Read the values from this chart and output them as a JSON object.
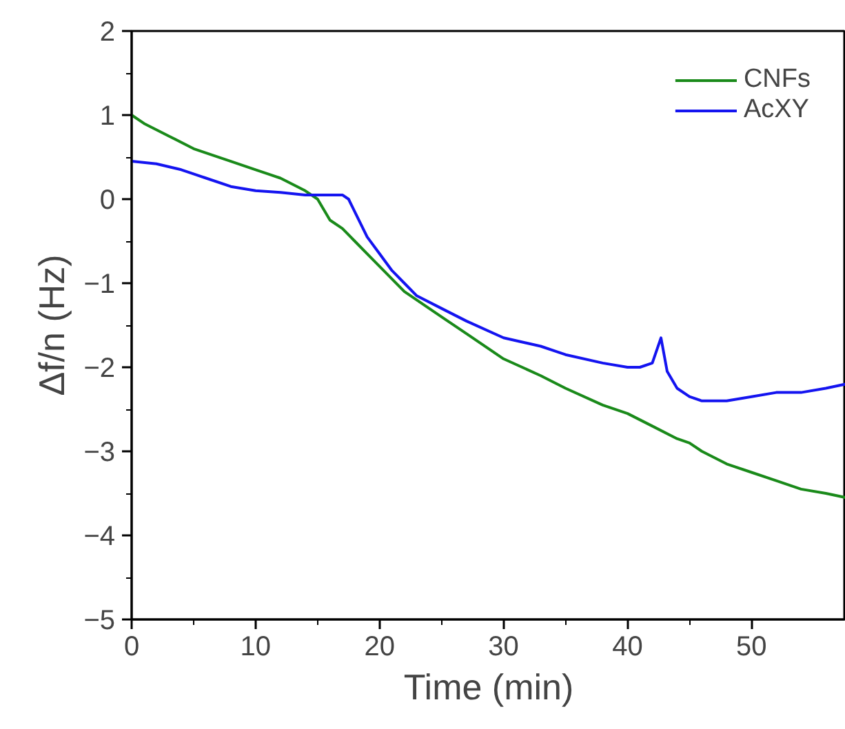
{
  "chart_data": {
    "type": "line",
    "xlabel": "Time (min)",
    "ylabel": "Δf/n (Hz)",
    "xlim": [
      0,
      57.6
    ],
    "ylim": [
      -5,
      2
    ],
    "xticks": [
      0,
      10,
      20,
      30,
      40,
      50
    ],
    "yticks": [
      -5,
      -4,
      -3,
      -2,
      -1,
      0,
      1,
      2
    ],
    "grid": false,
    "legend": "top right",
    "line_style": "solid",
    "marker": "none",
    "series": [
      {
        "name": "CNFs",
        "color": "#1a8a1a",
        "x": [
          0,
          1,
          3,
          5,
          8,
          10,
          12,
          14,
          15,
          16,
          17,
          18,
          19,
          20,
          21,
          22,
          23,
          25,
          27,
          30,
          33,
          35,
          38,
          40,
          42,
          44,
          45,
          46,
          48,
          50,
          52,
          54,
          56,
          57.6
        ],
        "values": [
          1.0,
          0.9,
          0.75,
          0.6,
          0.45,
          0.35,
          0.25,
          0.1,
          0.0,
          -0.25,
          -0.35,
          -0.5,
          -0.65,
          -0.8,
          -0.95,
          -1.1,
          -1.2,
          -1.4,
          -1.6,
          -1.9,
          -2.1,
          -2.25,
          -2.45,
          -2.55,
          -2.7,
          -2.85,
          -2.9,
          -3.0,
          -3.15,
          -3.25,
          -3.35,
          -3.45,
          -3.5,
          -3.55
        ]
      },
      {
        "name": "AcXY",
        "color": "#1414f0",
        "x": [
          0,
          2,
          4,
          6,
          8,
          10,
          12,
          14,
          16,
          17,
          17.5,
          18,
          18.5,
          19,
          20,
          21,
          22,
          23,
          25,
          27,
          30,
          33,
          35,
          38,
          40,
          41,
          42,
          42.7,
          43.2,
          44,
          45,
          46,
          48,
          50,
          52,
          54,
          56,
          57.6
        ],
        "values": [
          0.45,
          0.42,
          0.35,
          0.25,
          0.15,
          0.1,
          0.08,
          0.05,
          0.05,
          0.05,
          0.0,
          -0.15,
          -0.3,
          -0.45,
          -0.65,
          -0.85,
          -1.0,
          -1.15,
          -1.3,
          -1.45,
          -1.65,
          -1.75,
          -1.85,
          -1.95,
          -2.0,
          -2.0,
          -1.95,
          -1.65,
          -2.05,
          -2.25,
          -2.35,
          -2.4,
          -2.4,
          -2.35,
          -2.3,
          -2.3,
          -2.25,
          -2.2
        ]
      }
    ]
  }
}
